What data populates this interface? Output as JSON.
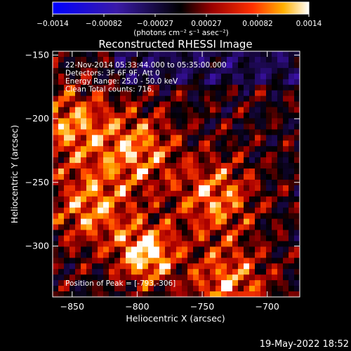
{
  "colorbar": {
    "ticks": [
      "-0.0014",
      "-0.00082",
      "-0.00027",
      "0.00027",
      "0.00082",
      "0.0014"
    ],
    "unit_label": "(photons cm⁻² s⁻¹ asec⁻²)",
    "range": [
      -0.0014,
      0.0014
    ]
  },
  "chart_data": {
    "type": "heatmap",
    "title": "Reconstructed RHESSI Image",
    "xlabel": "Heliocentric X (arcsec)",
    "ylabel": "Heliocentric Y (arcsec)",
    "xlim": [
      -865,
      -675
    ],
    "ylim": [
      -340,
      -147
    ],
    "x_ticks": [
      -850,
      -800,
      -750,
      -700
    ],
    "y_ticks": [
      -150,
      -200,
      -250,
      -300
    ],
    "x_tick_labels": [
      "−850",
      "−800",
      "−750",
      "−700"
    ],
    "y_tick_labels": [
      "−150",
      "−200",
      "−250",
      "−300"
    ],
    "colormap": "RHESSI hot: blue-purple negative, black zero, red-orange-yellow-white positive",
    "annotations": [
      "22-Nov-2014 05:33:44.000 to 05:35:00.000",
      "Detectors: 3F 6F 9F, Att 0",
      "Energy Range: 25.0 - 50.0 keV",
      "Clean     Total counts: 716."
    ],
    "peak_label": "Position of Peak = [-793,-306]",
    "peak": [
      -793,
      -306
    ],
    "bright_regions": [
      {
        "x": -793,
        "y": -306
      },
      {
        "x": -740,
        "y": -262
      },
      {
        "x": -800,
        "y": -225
      },
      {
        "x": -850,
        "y": -205
      },
      {
        "x": -730,
        "y": -330
      },
      {
        "x": -835,
        "y": -270
      }
    ]
  },
  "timestamp": "19-May-2022 18:52"
}
